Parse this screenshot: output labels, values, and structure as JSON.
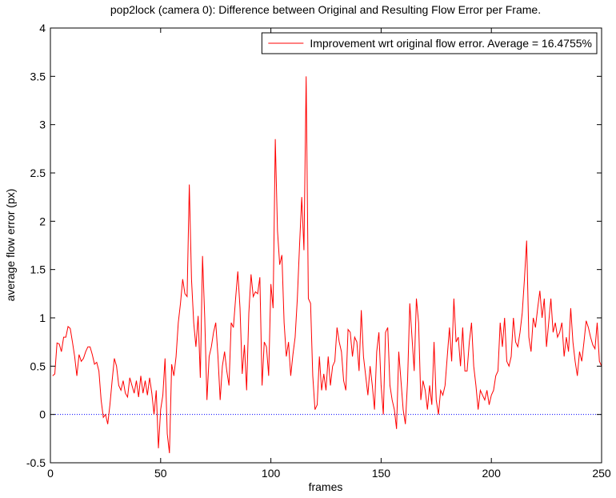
{
  "chart_data": {
    "type": "line",
    "title": "pop2lock (camera 0): Difference between Original and Resulting Flow Error per Frame.",
    "xlabel": "frames",
    "ylabel": "average flow error (px)",
    "xlim": [
      0,
      250
    ],
    "ylim": [
      -0.5,
      4
    ],
    "xticks": [
      0,
      50,
      100,
      150,
      200,
      250
    ],
    "yticks": [
      -0.5,
      0,
      0.5,
      1,
      1.5,
      2,
      2.5,
      3,
      3.5,
      4
    ],
    "legend": "upper right",
    "reference_line": {
      "value": 0,
      "color": "#0000ff"
    },
    "x": [
      1,
      2,
      3,
      4,
      5,
      6,
      7,
      8,
      9,
      10,
      11,
      12,
      13,
      14,
      15,
      16,
      17,
      18,
      19,
      20,
      21,
      22,
      23,
      24,
      25,
      26,
      27,
      28,
      29,
      30,
      31,
      32,
      33,
      34,
      35,
      36,
      37,
      38,
      39,
      40,
      41,
      42,
      43,
      44,
      45,
      46,
      47,
      48,
      49,
      50,
      51,
      52,
      53,
      54,
      55,
      56,
      57,
      58,
      59,
      60,
      61,
      62,
      63,
      64,
      65,
      66,
      67,
      68,
      69,
      70,
      71,
      72,
      73,
      74,
      75,
      76,
      77,
      78,
      79,
      80,
      81,
      82,
      83,
      84,
      85,
      86,
      87,
      88,
      89,
      90,
      91,
      92,
      93,
      94,
      95,
      96,
      97,
      98,
      99,
      100,
      101,
      102,
      103,
      104,
      105,
      106,
      107,
      108,
      109,
      110,
      111,
      112,
      113,
      114,
      115,
      116,
      117,
      118,
      119,
      120,
      121,
      122,
      123,
      124,
      125,
      126,
      127,
      128,
      129,
      130,
      131,
      132,
      133,
      134,
      135,
      136,
      137,
      138,
      139,
      140,
      141,
      142,
      143,
      144,
      145,
      146,
      147,
      148,
      149,
      150,
      151,
      152,
      153,
      154,
      155,
      156,
      157,
      158,
      159,
      160,
      161,
      162,
      163,
      164,
      165,
      166,
      167,
      168,
      169,
      170,
      171,
      172,
      173,
      174,
      175,
      176,
      177,
      178,
      179,
      180,
      181,
      182,
      183,
      184,
      185,
      186,
      187,
      188,
      189,
      190,
      191,
      192,
      193,
      194,
      195,
      196,
      197,
      198,
      199,
      200,
      201,
      202,
      203,
      204,
      205,
      206,
      207,
      208,
      209,
      210,
      211,
      212,
      213,
      214,
      215,
      216,
      217,
      218,
      219,
      220,
      221,
      222,
      223,
      224,
      225,
      226,
      227,
      228,
      229,
      230,
      231,
      232,
      233,
      234,
      235,
      236,
      237,
      238,
      239,
      240,
      241,
      242,
      243,
      244,
      245,
      246,
      247,
      248,
      249,
      250
    ],
    "series": [
      {
        "name": "Improvement wrt original flow error. Average = 16.4755%",
        "color": "#ff0000",
        "values": [
          0.4,
          0.42,
          0.74,
          0.73,
          0.65,
          0.8,
          0.8,
          0.91,
          0.89,
          0.75,
          0.6,
          0.4,
          0.62,
          0.55,
          0.58,
          0.65,
          0.7,
          0.7,
          0.62,
          0.52,
          0.54,
          0.45,
          0.15,
          -0.03,
          0.0,
          -0.1,
          0.1,
          0.35,
          0.58,
          0.5,
          0.3,
          0.25,
          0.35,
          0.22,
          0.18,
          0.38,
          0.3,
          0.22,
          0.35,
          0.18,
          0.4,
          0.22,
          0.35,
          0.2,
          0.38,
          0.22,
          0.0,
          0.25,
          -0.35,
          0.05,
          0.2,
          0.58,
          -0.2,
          -0.4,
          0.52,
          0.4,
          0.6,
          0.95,
          1.15,
          1.4,
          1.25,
          1.22,
          2.38,
          1.4,
          0.95,
          0.7,
          1.02,
          0.38,
          1.64,
          1.0,
          0.15,
          0.6,
          0.7,
          0.85,
          0.95,
          0.6,
          0.15,
          0.5,
          0.65,
          0.45,
          0.3,
          0.95,
          0.9,
          1.2,
          1.48,
          1.1,
          0.42,
          0.72,
          0.25,
          1.05,
          1.45,
          1.22,
          1.27,
          1.25,
          1.42,
          0.3,
          0.75,
          0.7,
          0.4,
          1.35,
          1.1,
          2.85,
          1.9,
          1.55,
          1.65,
          0.95,
          0.6,
          0.75,
          0.4,
          0.62,
          0.8,
          1.2,
          1.75,
          2.25,
          1.7,
          3.5,
          1.2,
          1.15,
          0.4,
          0.05,
          0.1,
          0.6,
          0.25,
          0.42,
          0.25,
          0.6,
          0.3,
          0.5,
          0.55,
          0.9,
          0.75,
          0.65,
          0.35,
          0.25,
          0.88,
          0.85,
          0.6,
          0.8,
          0.75,
          0.45,
          1.08,
          0.6,
          0.4,
          0.2,
          0.5,
          0.3,
          0.05,
          0.65,
          0.85,
          0.3,
          0.0,
          0.85,
          0.9,
          0.3,
          0.15,
          0.05,
          -0.15,
          0.65,
          0.35,
          0.05,
          -0.1,
          0.35,
          1.15,
          0.8,
          0.45,
          1.2,
          0.95,
          0.15,
          0.35,
          0.25,
          0.05,
          0.3,
          0.1,
          0.75,
          0.15,
          0.0,
          0.25,
          0.2,
          0.3,
          0.6,
          0.9,
          0.55,
          1.2,
          0.75,
          0.8,
          0.5,
          0.9,
          0.45,
          0.45,
          0.75,
          0.95,
          0.5,
          0.3,
          0.05,
          0.25,
          0.2,
          0.15,
          0.25,
          0.1,
          0.2,
          0.25,
          0.4,
          0.45,
          0.95,
          0.7,
          1.0,
          0.55,
          0.5,
          0.6,
          1.0,
          0.75,
          0.7,
          0.85,
          1.05,
          1.4,
          1.8,
          0.8,
          0.65,
          1.0,
          0.9,
          1.1,
          1.28,
          1.0,
          1.2,
          0.7,
          0.95,
          1.2,
          0.85,
          0.95,
          0.8,
          0.85,
          0.95,
          0.6,
          0.8,
          0.65,
          1.1,
          0.75,
          0.55,
          0.4,
          0.65,
          0.55,
          0.75,
          0.97,
          0.9,
          0.8,
          0.72,
          0.68,
          0.95,
          0.55,
          0.5
        ]
      }
    ]
  }
}
